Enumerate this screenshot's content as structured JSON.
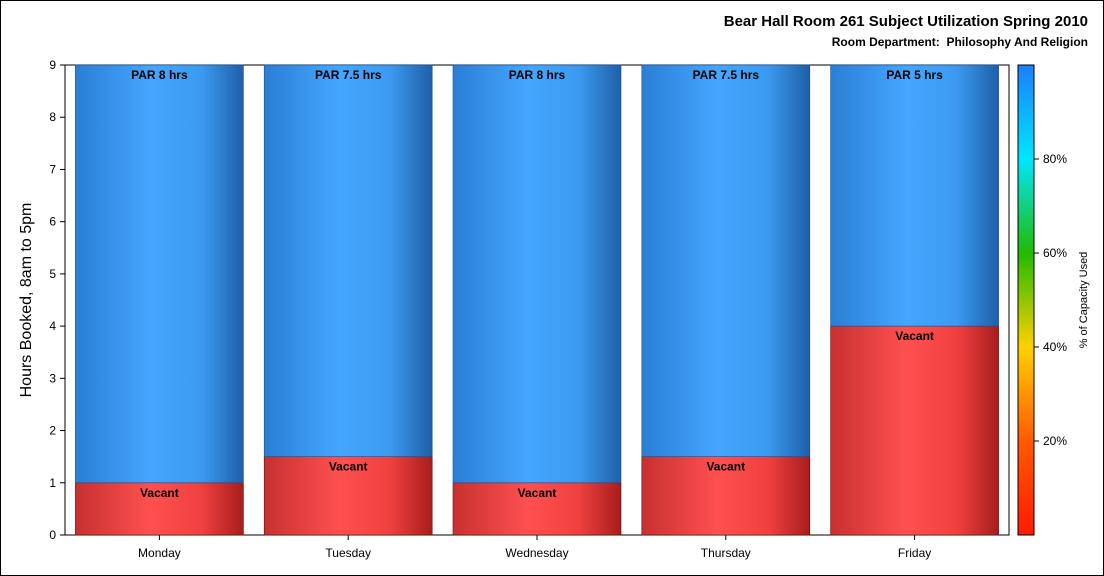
{
  "chart_data": {
    "type": "bar",
    "stacked": true,
    "title": "Bear Hall Room 261 Subject Utilization Spring 2010",
    "subtitle": "Room Department:  Philosophy And Religion",
    "categories": [
      "Monday",
      "Tuesday",
      "Wednesday",
      "Thursday",
      "Friday"
    ],
    "ylabel": "Hours Booked, 8am to 5pm",
    "ylim": [
      0,
      9
    ],
    "yticks": [
      0,
      1,
      2,
      3,
      4,
      5,
      6,
      7,
      8,
      9
    ],
    "series": [
      {
        "name": "Vacant",
        "values": [
          1,
          1.5,
          1,
          1.5,
          4
        ],
        "color": "#ff4d4d"
      },
      {
        "name": "PAR",
        "values": [
          8,
          7.5,
          8,
          7.5,
          5
        ],
        "color": "#3da0ff"
      }
    ],
    "bar_labels": {
      "vacant": [
        "Vacant",
        "Vacant",
        "Vacant",
        "Vacant",
        "Vacant"
      ],
      "par": [
        "PAR 8 hrs",
        "PAR 7.5 hrs",
        "PAR 8 hrs",
        "PAR 7.5 hrs",
        "PAR 5 hrs"
      ]
    },
    "colorbar": {
      "label": "% of Capacity Used",
      "ticks": [
        "20%",
        "40%",
        "60%",
        "80%"
      ],
      "tick_values": [
        20,
        40,
        60,
        80
      ],
      "range": [
        0,
        100
      ],
      "colors": [
        "#ff1a00",
        "#ff8000",
        "#ffe600",
        "#22bb00",
        "#00e6ff",
        "#1a7fff"
      ]
    }
  }
}
